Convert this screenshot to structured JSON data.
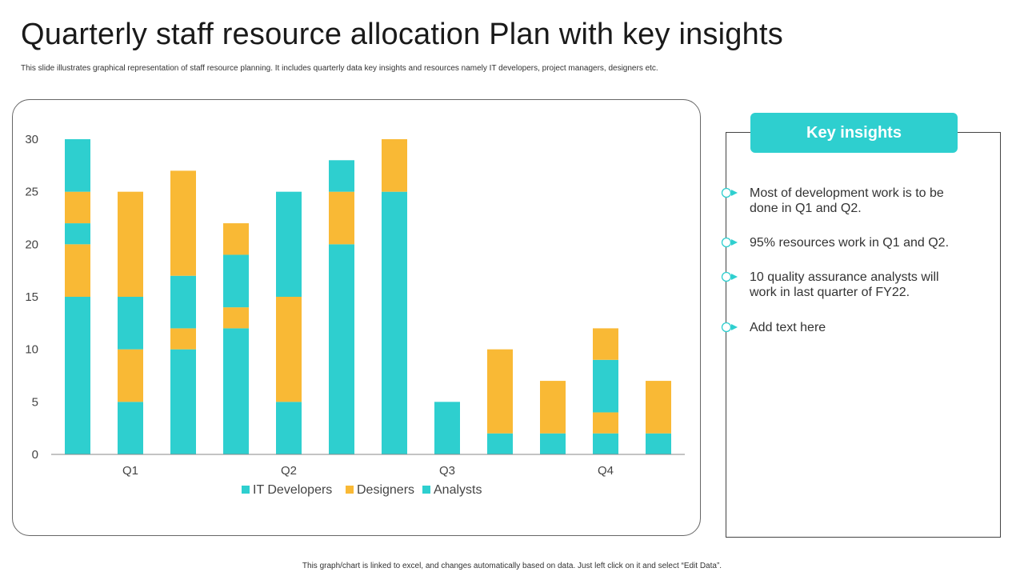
{
  "header": {
    "title": "Quarterly staff resource allocation Plan with key insights",
    "subtitle": "This slide illustrates graphical representation of staff resource planning. It includes quarterly data key insights and resources namely IT developers, project managers, designers etc."
  },
  "colors": {
    "teal": "#2ecfcf",
    "yellow": "#f9b935"
  },
  "chart_data": {
    "type": "bar",
    "stacked": true,
    "ylim": [
      0,
      30
    ],
    "yticks": [
      0,
      5,
      10,
      15,
      20,
      25,
      30
    ],
    "quarter_labels": [
      "Q1",
      "Q2",
      "Q3",
      "Q4"
    ],
    "legend": [
      "IT Developers",
      "Designers",
      "Analysts"
    ],
    "bars": [
      [
        15,
        5,
        2,
        3,
        5
      ],
      [
        5,
        5,
        5,
        10
      ],
      [
        10,
        2,
        5,
        10
      ],
      [
        12,
        2,
        5,
        3
      ],
      [
        5,
        10,
        10
      ],
      [
        20,
        5,
        3
      ],
      [
        25,
        5
      ],
      [
        5
      ],
      [
        2,
        8
      ],
      [
        2,
        5
      ],
      [
        2,
        2,
        5,
        3
      ],
      [
        2,
        5
      ]
    ],
    "segment_series": [
      [
        0,
        1,
        2,
        1,
        2
      ],
      [
        0,
        1,
        2,
        1
      ],
      [
        0,
        1,
        2,
        1
      ],
      [
        0,
        1,
        2,
        1
      ],
      [
        0,
        1,
        2
      ],
      [
        0,
        1,
        2
      ],
      [
        0,
        1
      ],
      [
        0
      ],
      [
        0,
        1
      ],
      [
        0,
        1
      ],
      [
        0,
        1,
        2,
        1
      ],
      [
        0,
        1
      ]
    ],
    "series_colors": [
      "#2ecfcf",
      "#f9b935",
      "#2ecfcf"
    ]
  },
  "insights": {
    "title": "Key insights",
    "items": [
      "Most of development work is to be done in Q1 and Q2.",
      "95% resources work in Q1 and Q2.",
      "10 quality assurance analysts will work in last quarter of FY22.",
      "Add text here"
    ]
  },
  "footer": "This graph/chart is linked to excel, and changes automatically based on data. Just left click on it and select “Edit Data”."
}
